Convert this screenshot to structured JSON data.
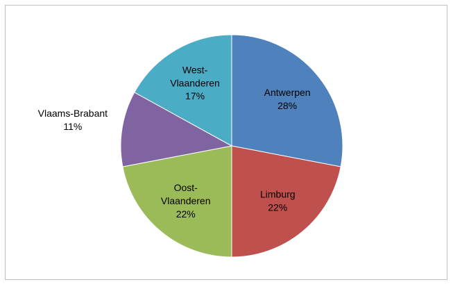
{
  "chart_data": {
    "type": "pie",
    "categories": [
      "Antwerpen",
      "Limburg",
      "Oost-Vlaanderen",
      "Vlaams-Brabant",
      "West-Vlaanderen"
    ],
    "values": [
      28,
      22,
      22,
      11,
      17
    ],
    "value_labels": [
      "28%",
      "22%",
      "22%",
      "11%",
      "17%"
    ],
    "colors": [
      "#4f81bd",
      "#c0504d",
      "#9bbb59",
      "#8064a2",
      "#4bacc6"
    ]
  }
}
